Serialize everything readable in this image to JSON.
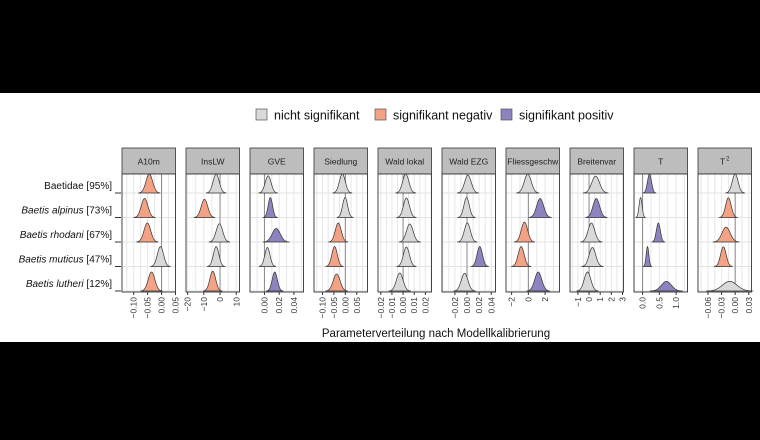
{
  "chart_data": {
    "type": "ridgeline",
    "xlabel": "Parameterverteilung nach Modellkalibrierung",
    "ylabel": "",
    "rows": [
      {
        "label": "Baetidae [95%]",
        "italic": false
      },
      {
        "label_italic": "Baetis alpinus",
        "label_rest": " [73%]",
        "italic": true
      },
      {
        "label_italic": "Baetis rhodani",
        "label_rest": " [67%]",
        "italic": true
      },
      {
        "label_italic": "Baetis muticus",
        "label_rest": " [47%]",
        "italic": true
      },
      {
        "label_italic": "Baetis lutheri",
        "label_rest": " [12%]",
        "italic": true
      }
    ],
    "legend": {
      "placement": "top",
      "entries": [
        {
          "key": "ns",
          "label": "nicht signifikant",
          "color": "#d9d9d9"
        },
        {
          "key": "neg",
          "label": "signifikant negativ",
          "color": "#f4a285"
        },
        {
          "key": "pos",
          "label": "signifikant positiv",
          "color": "#8b84bf"
        }
      ]
    },
    "grid": true,
    "panels": [
      {
        "title": "A10m",
        "xlim": [
          -0.142,
          0.05
        ],
        "ticks": [
          -0.1,
          -0.05,
          0.0,
          0.05
        ],
        "tick_labels": [
          "−0.10",
          "−0.05",
          "0.00",
          "0.05"
        ],
        "densities": [
          {
            "mean": -0.044,
            "sd": 0.012,
            "sig": "neg"
          },
          {
            "mean": -0.061,
            "sd": 0.012,
            "sig": "neg"
          },
          {
            "mean": -0.051,
            "sd": 0.012,
            "sig": "neg"
          },
          {
            "mean": -0.004,
            "sd": 0.011,
            "sig": "ns"
          },
          {
            "mean": -0.036,
            "sd": 0.012,
            "sig": "neg"
          }
        ]
      },
      {
        "title": "InsLW",
        "xlim": [
          -21,
          12
        ],
        "ticks": [
          -20,
          -10,
          0,
          10
        ],
        "tick_labels": [
          "−20",
          "−10",
          "0",
          "10"
        ],
        "densities": [
          {
            "mean": -2.4,
            "sd": 1.9,
            "sig": "ns"
          },
          {
            "mean": -9.6,
            "sd": 2.0,
            "sig": "neg"
          },
          {
            "mean": -0.4,
            "sd": 2.0,
            "sig": "ns"
          },
          {
            "mean": -2.4,
            "sd": 1.7,
            "sig": "ns"
          },
          {
            "mean": -4.5,
            "sd": 1.8,
            "sig": "neg"
          }
        ]
      },
      {
        "title": "GVE",
        "xlim": [
          -0.0196,
          0.053
        ],
        "ticks": [
          0.0,
          0.02,
          0.04
        ],
        "tick_labels": [
          "0.00",
          "0.02",
          "0.04"
        ],
        "densities": [
          {
            "mean": 0.005,
            "sd": 0.004,
            "sig": "ns"
          },
          {
            "mean": 0.008,
            "sd": 0.003,
            "sig": "pos"
          },
          {
            "mean": 0.016,
            "sd": 0.0055,
            "sig": "pos"
          },
          {
            "mean": 0.004,
            "sd": 0.0035,
            "sig": "ns"
          },
          {
            "mean": 0.014,
            "sd": 0.0035,
            "sig": "pos"
          }
        ]
      },
      {
        "title": "Siedlung",
        "xlim": [
          -0.137,
          0.097
        ],
        "ticks": [
          -0.1,
          -0.05,
          0.0,
          0.05
        ],
        "tick_labels": [
          "−0.10",
          "−0.05",
          "0.00",
          "0.05"
        ],
        "densities": [
          {
            "mean": -0.013,
            "sd": 0.013,
            "sig": "ns"
          },
          {
            "mean": -0.001,
            "sd": 0.011,
            "sig": "ns"
          },
          {
            "mean": -0.031,
            "sd": 0.013,
            "sig": "neg"
          },
          {
            "mean": -0.047,
            "sd": 0.012,
            "sig": "neg"
          },
          {
            "mean": -0.038,
            "sd": 0.015,
            "sig": "neg"
          }
        ]
      },
      {
        "title": "Wald lokal",
        "xlim": [
          -0.0225,
          0.0255
        ],
        "ticks": [
          -0.02,
          -0.01,
          0.0,
          0.01,
          0.02
        ],
        "tick_labels": [
          "−0.02",
          "−0.01",
          "0.00",
          "0.01",
          "0.02"
        ],
        "densities": [
          {
            "mean": 0.0024,
            "sd": 0.0028,
            "sig": "ns"
          },
          {
            "mean": 0.003,
            "sd": 0.0027,
            "sig": "ns"
          },
          {
            "mean": 0.006,
            "sd": 0.003,
            "sig": "ns"
          },
          {
            "mean": 0.003,
            "sd": 0.0027,
            "sig": "ns"
          },
          {
            "mean": -0.003,
            "sd": 0.003,
            "sig": "ns"
          }
        ]
      },
      {
        "title": "Wald EZG",
        "xlim": [
          -0.0413,
          0.047
        ],
        "ticks": [
          -0.02,
          0.0,
          0.02,
          0.04
        ],
        "tick_labels": [
          "−0.02",
          "0.00",
          "0.02",
          "0.04"
        ],
        "densities": [
          {
            "mean": 0.0015,
            "sd": 0.0055,
            "sig": "ns"
          },
          {
            "mean": -0.0007,
            "sd": 0.0045,
            "sig": "ns"
          },
          {
            "mean": 0.0005,
            "sd": 0.005,
            "sig": "ns"
          },
          {
            "mean": 0.021,
            "sd": 0.0045,
            "sig": "pos"
          },
          {
            "mean": -0.004,
            "sd": 0.0055,
            "sig": "ns"
          }
        ]
      },
      {
        "title": "Fliessgeschw",
        "xlim": [
          -2.67,
          3.72
        ],
        "ticks": [
          -2,
          0,
          2
        ],
        "tick_labels": [
          "−2",
          "0",
          "2"
        ],
        "densities": [
          {
            "mean": -0.07,
            "sd": 0.42,
            "sig": "ns"
          },
          {
            "mean": 1.41,
            "sd": 0.42,
            "sig": "pos"
          },
          {
            "mean": -0.47,
            "sd": 0.38,
            "sig": "neg"
          },
          {
            "mean": -0.86,
            "sd": 0.36,
            "sig": "neg"
          },
          {
            "mean": 1.18,
            "sd": 0.42,
            "sig": "pos"
          }
        ]
      },
      {
        "title": "Breitenvar",
        "xlim": [
          -1.71,
          3.09
        ],
        "ticks": [
          -1,
          0,
          1,
          2,
          3
        ],
        "tick_labels": [
          "−1",
          "0",
          "1",
          "2",
          "3"
        ],
        "densities": [
          {
            "mean": 0.59,
            "sd": 0.35,
            "sig": "ns"
          },
          {
            "mean": 0.65,
            "sd": 0.3,
            "sig": "pos"
          },
          {
            "mean": 0.21,
            "sd": 0.3,
            "sig": "ns"
          },
          {
            "mean": 0.3,
            "sd": 0.3,
            "sig": "ns"
          },
          {
            "mean": -0.14,
            "sd": 0.3,
            "sig": "ns"
          }
        ]
      },
      {
        "title": "T",
        "xlim": [
          -0.256,
          1.34
        ],
        "ticks": [
          0.0,
          0.5,
          1.0
        ],
        "tick_labels": [
          "0.0",
          "0.5",
          "1.0"
        ],
        "densities": [
          {
            "mean": 0.206,
            "sd": 0.06,
            "sig": "pos"
          },
          {
            "mean": -0.06,
            "sd": 0.045,
            "sig": "ns"
          },
          {
            "mean": 0.47,
            "sd": 0.06,
            "sig": "pos"
          },
          {
            "mean": 0.147,
            "sd": 0.04,
            "sig": "pos"
          },
          {
            "mean": 0.71,
            "sd": 0.15,
            "sig": "pos"
          }
        ]
      },
      {
        "title": "T",
        "title_sup": "2",
        "xlim": [
          -0.082,
          0.036
        ],
        "ticks": [
          -0.06,
          -0.03,
          0.0,
          0.03
        ],
        "tick_labels": [
          "−0.06",
          "−0.03",
          "0.00",
          "0.03"
        ],
        "densities": [
          {
            "mean": 0.0,
            "sd": 0.0065,
            "sig": "ns"
          },
          {
            "mean": -0.015,
            "sd": 0.0062,
            "sig": "neg"
          },
          {
            "mean": -0.02,
            "sd": 0.009,
            "sig": "neg"
          },
          {
            "mean": -0.026,
            "sd": 0.0062,
            "sig": "neg"
          },
          {
            "mean": -0.012,
            "sd": 0.016,
            "sig": "ns"
          }
        ]
      }
    ]
  }
}
